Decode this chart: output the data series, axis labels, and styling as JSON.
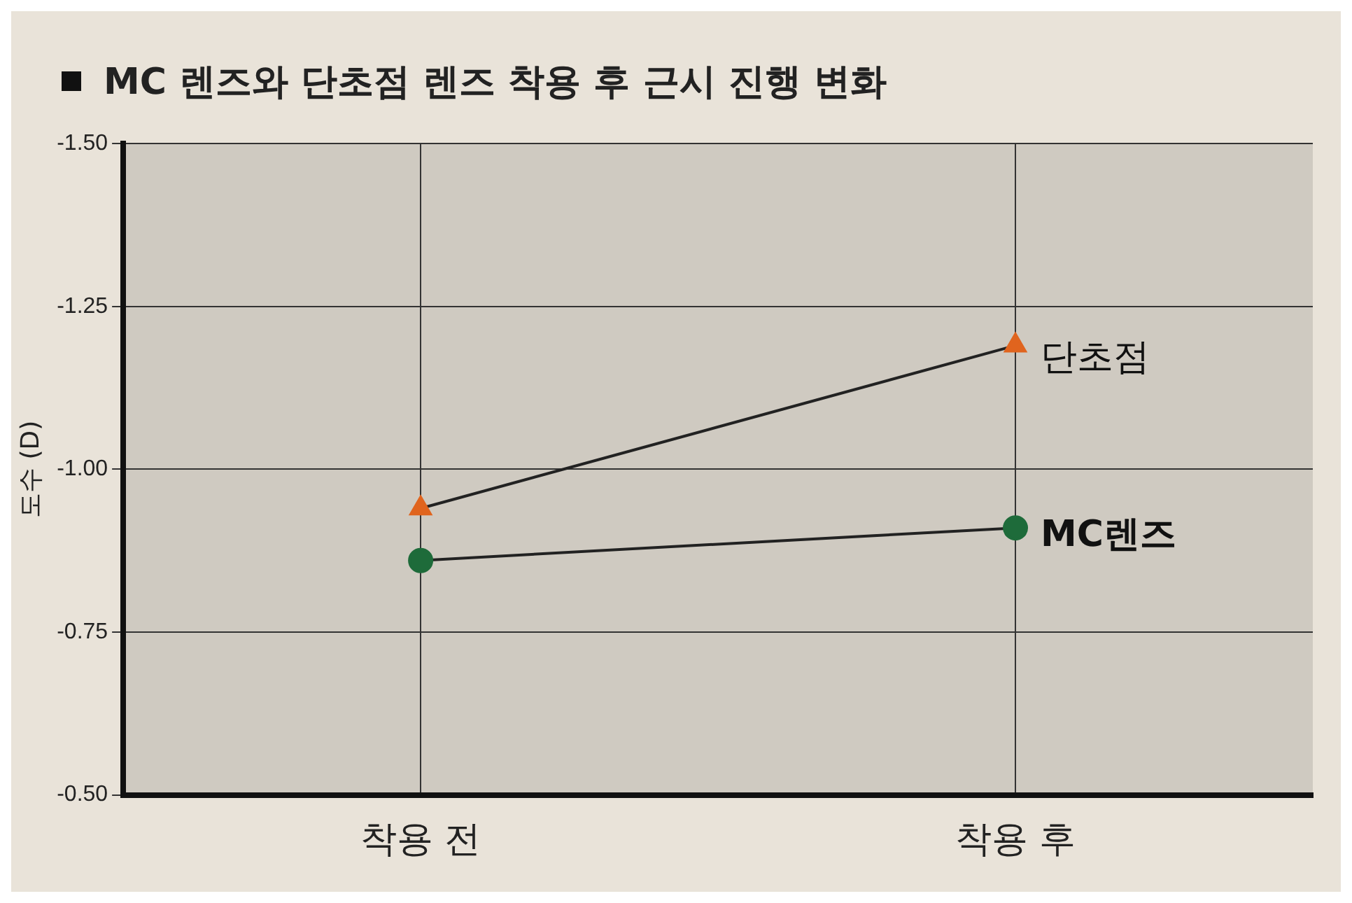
{
  "chart_data": {
    "type": "line",
    "title": "MC 렌즈와 단초점 렌즈 착용 후 근시 진행 변화",
    "ylabel": "도수 (D)",
    "categories": [
      "착용 전",
      "착용 후"
    ],
    "series": [
      {
        "name": "단초점",
        "color": "#e0641e",
        "values": [
          -0.94,
          -1.19
        ],
        "marker": "triangle"
      },
      {
        "name": "MC렌즈",
        "color": "#1e6b3a",
        "values": [
          -0.86,
          -0.91
        ],
        "marker": "circle"
      }
    ],
    "ylim": [
      -0.5,
      -1.5
    ],
    "yticks": [
      {
        "value": -0.5,
        "label": "-0.50"
      },
      {
        "value": -0.75,
        "label": "-0.75"
      },
      {
        "value": -1,
        "label": "-1.00"
      },
      {
        "value": -1.25,
        "label": "-1.25"
      },
      {
        "value": -1.5,
        "label": "-1.50"
      }
    ],
    "grid": true,
    "legend": false
  }
}
